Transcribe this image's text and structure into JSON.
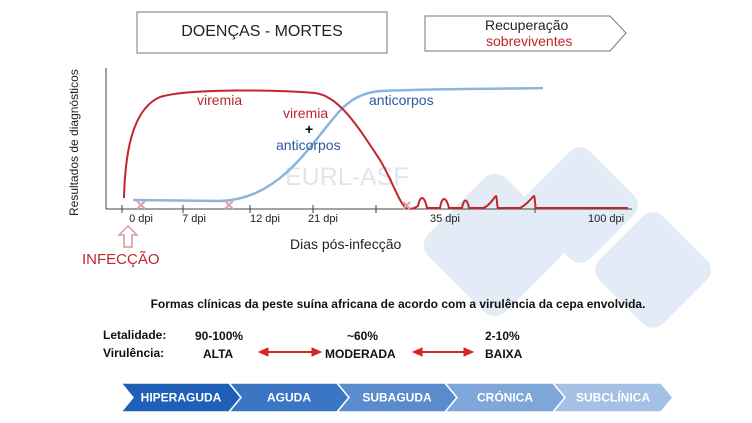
{
  "top_box": {
    "title": "DOENÇAS - MORTES"
  },
  "recovery_box": {
    "line1": "Recuperação",
    "line2": "sobreviventes"
  },
  "diagram": {
    "y_axis_label": "Resultados de diagnósticos",
    "x_axis_label": "Dias pós-infecção",
    "ticks": [
      "0 dpi",
      "7 dpi",
      "12 dpi",
      "21 dpi",
      "35 dpi",
      "100 dpi"
    ],
    "labels": {
      "viremia": "viremia",
      "anticorpos": "anticorpos",
      "overlap_top": "viremia",
      "overlap_plus": "+",
      "overlap_bottom": "anticorpos"
    },
    "watermark": "EURL-ASF",
    "infection_label": "INFECÇÃO",
    "colors": {
      "viremia": "#c0272d",
      "anticorpos": "#7fb0d8",
      "anticorpos_text": "#2a5a9a"
    }
  },
  "subtitle": "Formas clínicas da peste suína africana de acordo com a virulência da cepa envolvida.",
  "virulence": {
    "lethality_label": "Letalidade:",
    "virulence_label": "Virulência:",
    "levels": [
      {
        "lethality": "90-100%",
        "virulence": "ALTA"
      },
      {
        "lethality": "~60%",
        "virulence": "MODERADA"
      },
      {
        "lethality": "2-10%",
        "virulence": "BAIXA"
      }
    ]
  },
  "stages": [
    {
      "label": "HIPERAGUDA",
      "color": "#1f5fb8"
    },
    {
      "label": "AGUDA",
      "color": "#3a76c4"
    },
    {
      "label": "SUBAGUDA",
      "color": "#5a8ccd"
    },
    {
      "label": "CRÓNICA",
      "color": "#7ea6d8"
    },
    {
      "label": "SUBCLÍNICA",
      "color": "#a4c0e4"
    }
  ]
}
